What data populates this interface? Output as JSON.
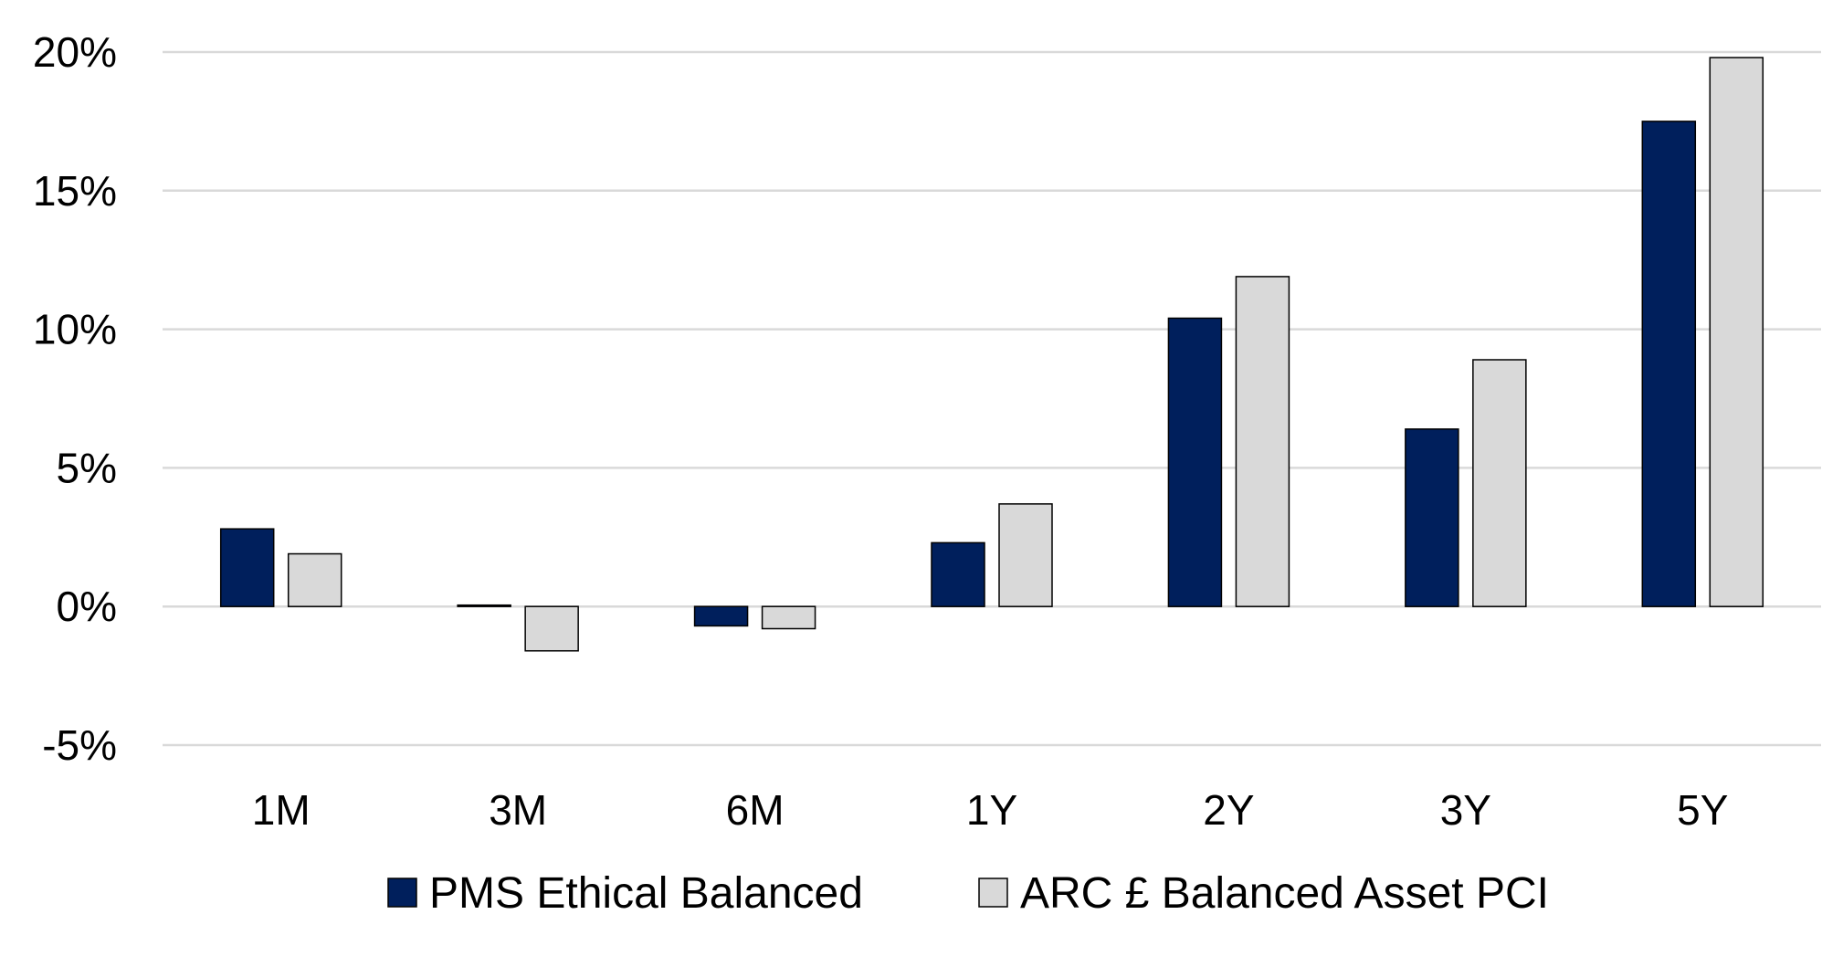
{
  "chart_data": {
    "type": "bar",
    "title": "",
    "xlabel": "",
    "ylabel": "",
    "categories": [
      "1M",
      "3M",
      "6M",
      "1Y",
      "2Y",
      "3Y",
      "5Y"
    ],
    "series": [
      {
        "name": "PMS Ethical Balanced",
        "color": "#001f5c",
        "values": [
          2.8,
          0.05,
          -0.7,
          2.3,
          10.4,
          6.4,
          17.5
        ]
      },
      {
        "name": "ARC £ Balanced Asset PCI",
        "color": "#d9d9d9",
        "values": [
          1.9,
          -1.6,
          -0.8,
          3.7,
          11.9,
          8.9,
          19.8
        ]
      }
    ],
    "ylim": [
      -5,
      20
    ],
    "yticks": [
      20,
      15,
      10,
      5,
      0,
      -5
    ],
    "ytick_labels": [
      "20%",
      "15%",
      "10%",
      "5%",
      "0%",
      "-5%"
    ],
    "grid": true,
    "legend_position": "bottom"
  }
}
